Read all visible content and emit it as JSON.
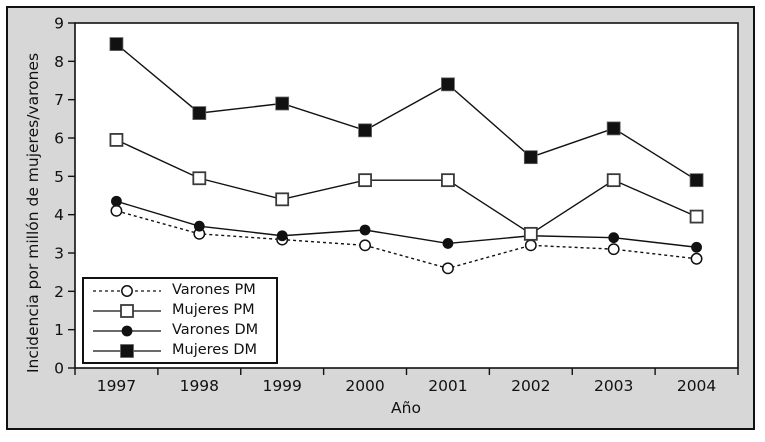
{
  "chart_data": {
    "type": "line",
    "title": "",
    "xlabel": "Año",
    "ylabel": "Incidencia por millón de mujeres/varones",
    "categories": [
      "1997",
      "1998",
      "1999",
      "2000",
      "2001",
      "2002",
      "2003",
      "2004"
    ],
    "ylim": [
      0,
      9
    ],
    "yticks": [
      0,
      1,
      2,
      3,
      4,
      5,
      6,
      7,
      8,
      9
    ],
    "grid": false,
    "legend_position": "inside-bottom-left",
    "series": [
      {
        "name": "Varones PM",
        "marker": "circle-open",
        "line": "dashed",
        "values": [
          4.1,
          3.5,
          3.35,
          3.2,
          2.6,
          3.2,
          3.1,
          2.85
        ]
      },
      {
        "name": "Mujeres PM",
        "marker": "square-open",
        "line": "solid",
        "values": [
          5.95,
          4.95,
          4.4,
          4.9,
          4.9,
          3.5,
          4.9,
          3.95
        ]
      },
      {
        "name": "Varones DM",
        "marker": "circle-filled",
        "line": "solid",
        "values": [
          4.35,
          3.7,
          3.45,
          3.6,
          3.25,
          3.45,
          3.4,
          3.15
        ]
      },
      {
        "name": "Mujeres DM",
        "marker": "square-filled",
        "line": "solid",
        "values": [
          8.45,
          6.65,
          6.9,
          6.2,
          7.4,
          5.5,
          6.25,
          4.9
        ]
      }
    ],
    "draw_order": [
      0,
      2,
      1,
      3
    ],
    "colors": {
      "stroke": "#111111",
      "panel_background": "#d7d7d7",
      "plot_background": "#ffffff"
    }
  }
}
